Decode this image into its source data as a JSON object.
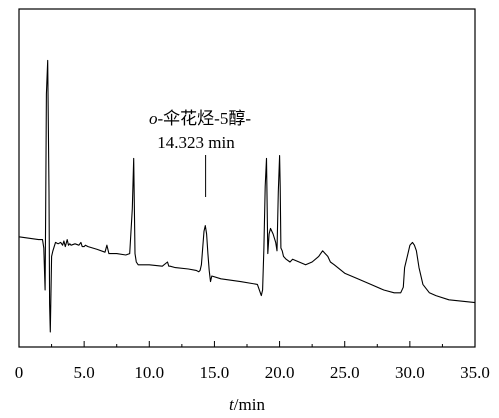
{
  "chart_data": {
    "type": "line",
    "title": "",
    "xlabel_italic": "t",
    "xlabel_rest": "/min",
    "ylabel": "",
    "xlim": [
      0,
      35
    ],
    "x_ticks": [
      0,
      5,
      10,
      15,
      20,
      25,
      30,
      35
    ],
    "x_tick_labels": [
      "0",
      "5.0",
      "10.0",
      "15.0",
      "20.0",
      "25.0",
      "30.0",
      "35.0"
    ],
    "annotation": {
      "line1_italic": "o",
      "line1_rest": "-伞花烃-5醇-",
      "line2": "14.323 min",
      "x": 14.323
    },
    "ylim": [
      0,
      100
    ],
    "series": [
      {
        "x": [
          0,
          1.5,
          1.8,
          1.9,
          2.0,
          2.05,
          2.1,
          2.2,
          2.3,
          2.35,
          2.4,
          2.5,
          2.6,
          2.8,
          3.0,
          3.2,
          3.35,
          3.45,
          3.55,
          3.7,
          3.8,
          3.9,
          4.0,
          4.3,
          4.6,
          4.75,
          4.85,
          5.0,
          5.1,
          5.3,
          6.0,
          6.6,
          6.75,
          6.9,
          7.5,
          8.2,
          8.5,
          8.7,
          8.8,
          8.9,
          9.0,
          9.15,
          9.4,
          10.0,
          11.0,
          11.4,
          11.5,
          11.6,
          12.0,
          13.0,
          13.6,
          13.8,
          13.9,
          14.0,
          14.1,
          14.2,
          14.3,
          14.4,
          14.5,
          14.6,
          14.7,
          14.8,
          15.5,
          17.0,
          18.3,
          18.6,
          18.7,
          18.8,
          18.9,
          19.0,
          19.1,
          19.2,
          19.3,
          19.5,
          19.7,
          19.8,
          19.9,
          20.0,
          20.05,
          20.1,
          20.2,
          20.3,
          20.5,
          20.8,
          21.0,
          21.5,
          22.0,
          22.5,
          23.0,
          23.3,
          23.5,
          23.7,
          23.9,
          24.2,
          25.0,
          26.0,
          27.0,
          28.0,
          28.8,
          29.3,
          29.5,
          29.6,
          29.8,
          30.0,
          30.2,
          30.35,
          30.5,
          30.7,
          31.0,
          31.5,
          32.0,
          33.0,
          34.0,
          35.0
        ],
        "y": [
          34,
          33,
          33,
          30,
          15,
          45,
          85,
          97,
          50,
          10,
          0,
          27,
          29,
          32,
          31.5,
          32,
          31,
          32.5,
          30.5,
          33,
          31,
          31.5,
          31,
          31.5,
          31,
          32,
          30.5,
          30.5,
          31,
          30.5,
          29.5,
          28.5,
          31,
          28,
          28,
          27.5,
          28,
          44,
          62,
          28,
          25,
          24,
          24,
          24,
          23.5,
          25,
          23.5,
          23.5,
          23,
          22.5,
          22,
          21.5,
          22,
          24,
          30,
          36,
          38,
          35,
          28,
          22,
          18,
          20,
          19,
          18,
          17,
          13,
          15,
          30,
          52,
          62,
          28,
          35,
          37,
          35,
          32,
          29,
          50,
          63,
          52,
          30,
          29,
          27,
          26,
          25,
          26,
          25,
          24,
          25,
          27,
          29,
          28,
          27,
          25,
          24,
          21,
          19,
          17,
          15,
          14,
          14,
          16,
          23,
          27,
          31,
          32,
          31,
          29,
          23,
          17,
          14,
          13,
          11.5,
          11,
          10.5
        ]
      }
    ],
    "peak_value_x": 14.323
  }
}
